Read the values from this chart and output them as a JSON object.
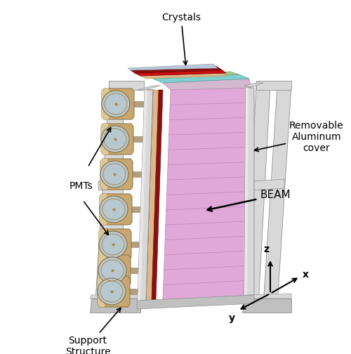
{
  "figsize": [
    5.0,
    5.04
  ],
  "dpi": 100,
  "colors": {
    "white_bg": "#ffffff",
    "frame_light": "#d8d8d8",
    "frame_mid": "#c0c0c0",
    "frame_dark": "#a8a8a8",
    "frame_edge": "#909090",
    "pink_panel": "#e0a8d8",
    "pink_panel_line": "#b888b8",
    "cyan_layer": "#80d0d0",
    "green_layer": "#90c890",
    "red_strip": "#cc1010",
    "dark_red": "#881010",
    "beige_layer": "#ddb888",
    "pmt_body": "#c8a870",
    "pmt_light": "#ddc898",
    "pmt_dark": "#a88850",
    "pmt_edge": "#887040",
    "pmt_glass": "#b8c8d0",
    "connector": "#b0a080"
  },
  "labels": {
    "crystals": "Crystals",
    "removable": "Removable\nAluminum\ncover",
    "pmts": "PMTs",
    "beam": "BEAM",
    "support": "Support\nStructure",
    "x": "x",
    "y": "y",
    "z": "z"
  },
  "font_size": 10
}
